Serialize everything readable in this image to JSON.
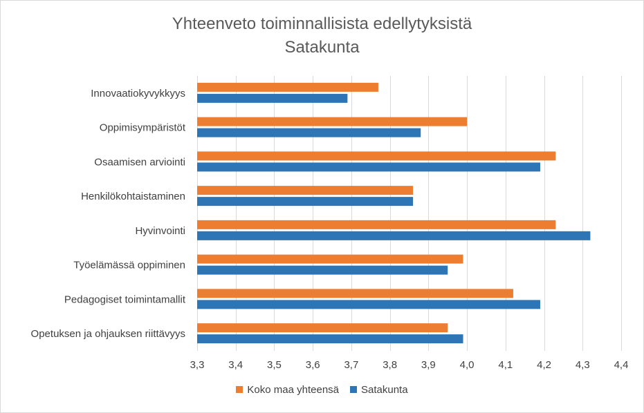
{
  "chart_data": {
    "type": "bar",
    "orientation": "horizontal",
    "title": "Yhteenveto toiminnallisista edellytyksistä",
    "subtitle": "Satakunta",
    "categories": [
      "Innovaatiokyvykkyys",
      "Oppimisympäristöt",
      "Osaamisen arviointi",
      "Henkilökohtaistaminen",
      "Hyvinvointi",
      "Työelämässä oppiminen",
      "Pedagogiset toimintamallit",
      "Opetuksen ja ohjauksen riittävyys"
    ],
    "series": [
      {
        "name": "Koko maa yhteensä",
        "color": "#ed7d31",
        "values": [
          3.77,
          4.0,
          4.23,
          3.86,
          4.23,
          3.99,
          4.12,
          3.95
        ]
      },
      {
        "name": "Satakunta",
        "color": "#2e75b6",
        "values": [
          3.69,
          3.88,
          4.19,
          3.86,
          4.32,
          3.95,
          4.19,
          3.99
        ]
      }
    ],
    "xlim": [
      3.3,
      4.4
    ],
    "xticks": [
      3.3,
      3.4,
      3.5,
      3.6,
      3.7,
      3.8,
      3.9,
      4.0,
      4.1,
      4.2,
      4.3,
      4.4
    ],
    "xtick_labels": [
      "3,3",
      "3,4",
      "3,5",
      "3,6",
      "3,7",
      "3,8",
      "3,9",
      "4,0",
      "4,1",
      "4,2",
      "4,3",
      "4,4"
    ],
    "xlabel": "",
    "ylabel": "",
    "grid": "vertical",
    "legend": "bottom"
  }
}
